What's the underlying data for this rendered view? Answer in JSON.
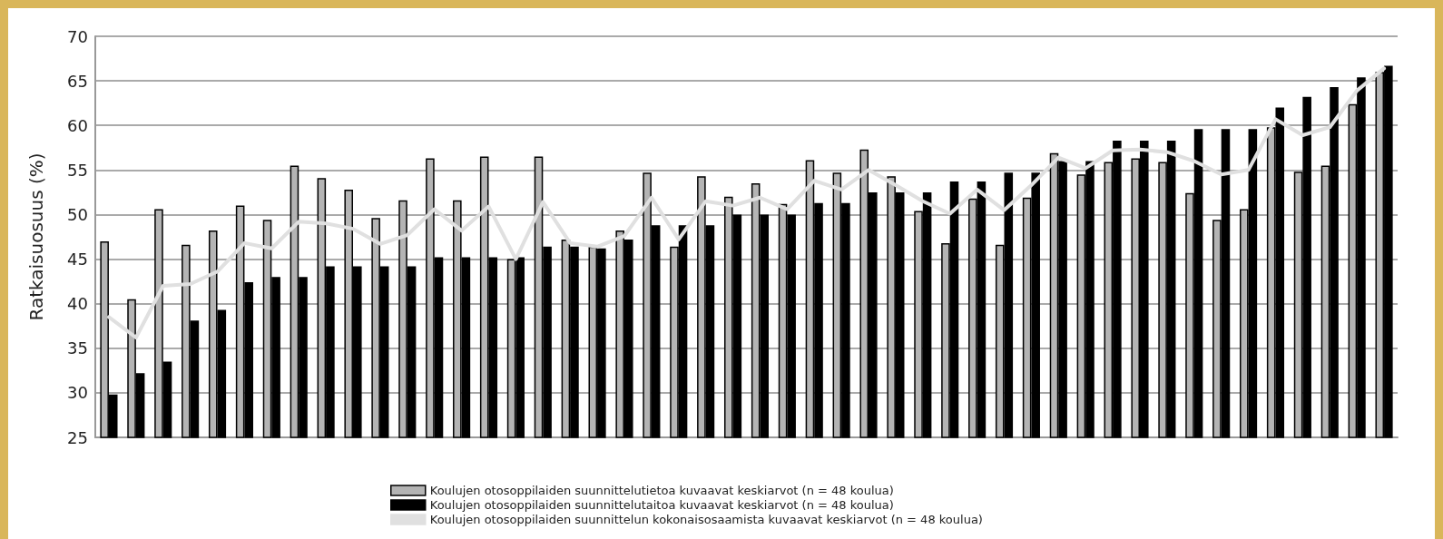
{
  "chart_data": {
    "type": "bar",
    "ylabel": "Ratkaisuosuus (%)",
    "categories": [
      null,
      null,
      null,
      null,
      null,
      null,
      null,
      null,
      null,
      null,
      null,
      null,
      null,
      null,
      null,
      null,
      null,
      null,
      null,
      null,
      null,
      null,
      null,
      null,
      null,
      null,
      null,
      null,
      null,
      null,
      null,
      null,
      null,
      null,
      null,
      null,
      null,
      null,
      null,
      null,
      null,
      null,
      null,
      null,
      null,
      null,
      null,
      null
    ],
    "series": [
      {
        "name": "Koulujen otosoppilaiden suunnittelutietoa kuvaavat keskiarvot (n = 48 koulua)",
        "color": "#b4b4b4",
        "values": [
          47,
          40.5,
          50.6,
          46.6,
          48.2,
          51,
          49.4,
          55.5,
          54.1,
          52.8,
          49.6,
          51.6,
          56.3,
          51.6,
          56.5,
          45,
          56.5,
          47.2,
          46.4,
          48.2,
          54.7,
          46.4,
          54.3,
          52,
          53.5,
          51.2,
          56.1,
          54.7,
          57.3,
          54.3,
          50.4,
          46.8,
          51.8,
          46.6,
          51.9,
          56.9,
          54.5,
          55.9,
          56.3,
          55.9,
          52.4,
          49.4,
          50.6,
          59.8,
          54.8,
          55.5,
          62.4,
          66
        ]
      },
      {
        "name": "Koulujen otosoppilaiden suunnittelutaitoa kuvaavat keskiarvot (n = 48 koulua)",
        "color": "#000000",
        "values": [
          29.8,
          32.2,
          33.5,
          38.1,
          39.3,
          42.4,
          43,
          43,
          44.2,
          44.2,
          44.2,
          44.2,
          45.2,
          45.2,
          45.2,
          45.2,
          46.4,
          46.4,
          46.2,
          47.2,
          48.8,
          48.8,
          48.8,
          50,
          50,
          50,
          51.3,
          51.3,
          52.5,
          52.5,
          52.5,
          53.7,
          53.7,
          54.7,
          54.7,
          56,
          56,
          58.3,
          58.3,
          58.3,
          59.6,
          59.6,
          59.6,
          62,
          63.2,
          64.3,
          65.4,
          66.7
        ]
      },
      {
        "name": "Koulujen otosoppilaiden suunnittelun kokonaisosaamista kuvaavat keskiarvot (n = 48 koulua)",
        "type": "line",
        "color": "#e0e0e0",
        "values": [
          38.5,
          36.2,
          42,
          42.2,
          43.6,
          46.8,
          46.2,
          49.2,
          49,
          48.4,
          46.7,
          47.7,
          50.6,
          48.2,
          50.9,
          45,
          51.4,
          46.8,
          46.4,
          47.6,
          51.9,
          47.2,
          51.5,
          51,
          51.9,
          50.6,
          53.8,
          52.8,
          55,
          53.3,
          51.5,
          50.1,
          52.8,
          50.5,
          53.3,
          56.4,
          55.2,
          57.2,
          57.3,
          57,
          56,
          54.5,
          55,
          60.7,
          58.9,
          59.8,
          63.9,
          66.4
        ]
      }
    ],
    "ylim": [
      25,
      70
    ],
    "yticks": [
      25,
      30,
      35,
      40,
      45,
      50,
      55,
      60,
      65,
      70
    ],
    "grid": "y",
    "legend": "bottom",
    "tick_labels": "y",
    "marker": "none",
    "line_style": "solid"
  }
}
